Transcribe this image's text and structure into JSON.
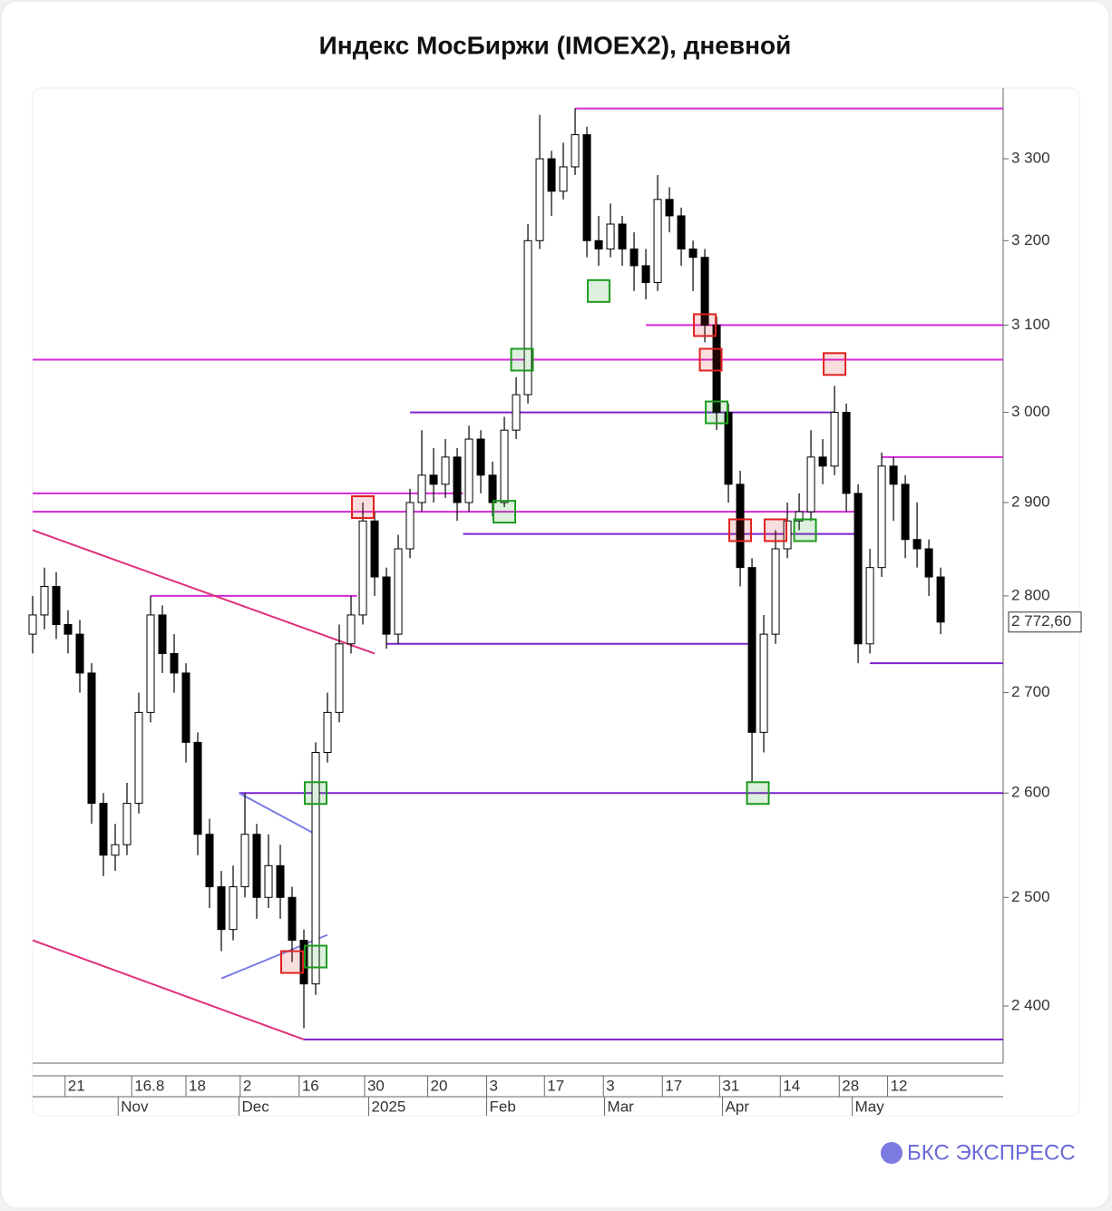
{
  "chart_data": {
    "type": "candlestick",
    "title": "Индекс МосБиржи (IMOEX2), дневной",
    "log_scale": true,
    "ylim": [
      2349,
      3389
    ],
    "yticks": [
      {
        "value": 2400,
        "label": "2 400"
      },
      {
        "value": 2500,
        "label": "2 500"
      },
      {
        "value": 2600,
        "label": "2 600"
      },
      {
        "value": 2700,
        "label": "2 700"
      },
      {
        "value": 2800,
        "label": "2 800"
      },
      {
        "value": 2900,
        "label": "2 900"
      },
      {
        "value": 3000,
        "label": "3 000"
      },
      {
        "value": 3100,
        "label": "3 100"
      },
      {
        "value": 3200,
        "label": "3 200"
      },
      {
        "value": 3300,
        "label": "3 300"
      }
    ],
    "xlim": [
      0,
      164.6
    ],
    "xticks": [
      {
        "value": 5.5,
        "label": "21"
      },
      16.8,
      {
        "value": 26,
        "label": "18"
      },
      {
        "value": 35.2,
        "label": "2"
      },
      {
        "value": 45.2,
        "label": "16"
      },
      {
        "value": 56.3,
        "label": "30"
      },
      {
        "value": 67,
        "label": "20"
      },
      {
        "value": 77,
        "label": "3"
      },
      {
        "value": 86.8,
        "label": "17"
      },
      {
        "value": 96.8,
        "label": "3"
      },
      {
        "value": 106.8,
        "label": "17"
      },
      {
        "value": 116.5,
        "label": "31"
      },
      {
        "value": 126.8,
        "label": "14"
      },
      {
        "value": 136.8,
        "label": "28"
      },
      {
        "value": 145,
        "label": "12"
      }
    ],
    "month_ticks": [
      {
        "value": 14.5,
        "label": "Nov"
      },
      {
        "value": 35,
        "label": "Dec"
      },
      {
        "value": 57,
        "label": "2025"
      },
      {
        "value": 77,
        "label": "Feb"
      },
      {
        "value": 97,
        "label": "Mar"
      },
      {
        "value": 117,
        "label": "Apr"
      },
      {
        "value": 139,
        "label": "May"
      }
    ],
    "up_color": "#ffffff",
    "down_color": "#000000",
    "x": [
      0,
      2,
      4,
      6,
      8,
      10,
      12,
      14,
      16,
      18,
      20,
      22,
      24,
      26,
      28,
      30,
      32,
      34,
      36,
      38,
      40,
      42,
      44,
      46,
      48,
      50,
      52,
      54,
      56,
      58,
      60,
      62,
      64,
      66,
      68,
      70,
      72,
      74,
      76,
      78,
      80,
      82,
      84,
      86,
      88,
      90,
      92,
      94,
      96,
      98,
      100,
      102,
      104,
      106,
      108,
      110,
      112,
      114,
      116,
      118,
      120,
      122,
      124,
      126,
      128,
      130,
      132,
      134,
      136,
      138,
      140,
      142,
      144,
      146,
      148,
      150,
      152,
      154
    ],
    "open": [
      2760,
      2780,
      2810,
      2770,
      2760,
      2720,
      2590,
      2540,
      2550,
      2590,
      2680,
      2780,
      2740,
      2720,
      2650,
      2560,
      2510,
      2470,
      2510,
      2560,
      2500,
      2530,
      2500,
      2460,
      2420,
      2640,
      2680,
      2750,
      2780,
      2880,
      2820,
      2760,
      2850,
      2900,
      2930,
      2920,
      2950,
      2900,
      2970,
      2930,
      2900,
      2980,
      3020,
      3200,
      3300,
      3260,
      3290,
      3330,
      3200,
      3190,
      3220,
      3190,
      3170,
      3150,
      3250,
      3230,
      3190,
      3180,
      3100,
      3000,
      2920,
      2830,
      2660,
      2760,
      2850,
      2880,
      2890,
      2950,
      2940,
      3000,
      2910,
      2750,
      2830,
      2940,
      2920,
      2860,
      2850,
      2820
    ],
    "high": [
      2800,
      2830,
      2825,
      2785,
      2775,
      2730,
      2600,
      2570,
      2610,
      2700,
      2800,
      2790,
      2760,
      2730,
      2660,
      2575,
      2525,
      2530,
      2600,
      2570,
      2560,
      2550,
      2510,
      2470,
      2650,
      2700,
      2770,
      2800,
      2900,
      2890,
      2830,
      2865,
      2915,
      2980,
      2960,
      2970,
      2960,
      2985,
      2980,
      2945,
      2995,
      3040,
      3220,
      3355,
      3310,
      3320,
      3363,
      3340,
      3230,
      3245,
      3230,
      3210,
      3190,
      3280,
      3265,
      3240,
      3200,
      3190,
      3110,
      3010,
      2935,
      2840,
      2780,
      2870,
      2900,
      2910,
      2980,
      2970,
      3030,
      3010,
      2920,
      2850,
      2955,
      2950,
      2930,
      2900,
      2860,
      2830
    ],
    "low": [
      2740,
      2765,
      2755,
      2740,
      2700,
      2570,
      2520,
      2525,
      2540,
      2580,
      2670,
      2720,
      2700,
      2630,
      2540,
      2490,
      2450,
      2460,
      2500,
      2480,
      2490,
      2480,
      2440,
      2380,
      2410,
      2630,
      2670,
      2740,
      2770,
      2800,
      2745,
      2750,
      2840,
      2890,
      2900,
      2905,
      2880,
      2890,
      2910,
      2885,
      2895,
      2970,
      3010,
      3190,
      3230,
      3250,
      3280,
      3180,
      3170,
      3180,
      3170,
      3140,
      3130,
      3140,
      3210,
      3170,
      3140,
      3080,
      2980,
      2900,
      2810,
      2610,
      2640,
      2750,
      2840,
      2870,
      2880,
      2920,
      2930,
      2890,
      2730,
      2740,
      2820,
      2880,
      2840,
      2830,
      2800,
      2760
    ],
    "close": [
      2780,
      2810,
      2770,
      2760,
      2720,
      2590,
      2540,
      2550,
      2590,
      2680,
      2780,
      2740,
      2720,
      2650,
      2560,
      2510,
      2470,
      2510,
      2560,
      2500,
      2530,
      2500,
      2460,
      2420,
      2640,
      2680,
      2750,
      2780,
      2880,
      2820,
      2760,
      2850,
      2900,
      2930,
      2920,
      2950,
      2900,
      2970,
      2930,
      2900,
      2980,
      3020,
      3200,
      3300,
      3260,
      3290,
      3330,
      3200,
      3190,
      3220,
      3190,
      3170,
      3150,
      3250,
      3230,
      3190,
      3180,
      3100,
      3000,
      2920,
      2830,
      2660,
      2760,
      2850,
      2880,
      2890,
      2950,
      2940,
      3000,
      2910,
      2750,
      2830,
      2940,
      2920,
      2860,
      2850,
      2820,
      2772.6
    ],
    "last_price": {
      "value": 2772.6,
      "label": "2 772,60"
    },
    "levels": [
      {
        "value": 3363,
        "from": 92,
        "to": 164.6,
        "color": "#d62ad6"
      },
      {
        "value": 3100,
        "from": 104,
        "to": 164.6,
        "color": "#d62ad6"
      },
      {
        "value": 3060,
        "from": 0,
        "to": 164.6,
        "color": "#d62ad6"
      },
      {
        "value": 3000,
        "from": 64,
        "to": 136,
        "color": "#7a22d0"
      },
      {
        "value": 2910,
        "from": 0,
        "to": 73,
        "color": "#d62ad6"
      },
      {
        "value": 2890,
        "from": 0,
        "to": 140,
        "color": "#d62ad6"
      },
      {
        "value": 2866,
        "from": 73,
        "to": 140,
        "color": "#7a22d0"
      },
      {
        "value": 2950,
        "from": 144,
        "to": 164.6,
        "color": "#d62ad6"
      },
      {
        "value": 2800,
        "from": 20,
        "to": 55,
        "color": "#d62ad6"
      },
      {
        "value": 2750,
        "from": 60,
        "to": 122,
        "color": "#7a22d0"
      },
      {
        "value": 2730,
        "from": 142,
        "to": 164.6,
        "color": "#7a22d0"
      },
      {
        "value": 2600,
        "from": 35,
        "to": 164.6,
        "color": "#7a22d0"
      },
      {
        "value": 2370,
        "from": 46,
        "to": 164.6,
        "color": "#7a22d0"
      }
    ],
    "trendlines": [
      {
        "x": [
          0,
          58
        ],
        "y": [
          2870,
          2740
        ],
        "color": "#e0307a"
      },
      {
        "x": [
          0,
          46
        ],
        "y": [
          2460,
          2370
        ],
        "color": "#e0307a"
      },
      {
        "x": [
          35,
          48
        ],
        "y": [
          2600,
          2560
        ],
        "color": "#7b7be8"
      },
      {
        "x": [
          32,
          50
        ],
        "y": [
          2425,
          2465
        ],
        "color": "#7b7be8"
      }
    ],
    "markers": [
      {
        "x": 56,
        "value": 2895,
        "color": "#e02020"
      },
      {
        "x": 48,
        "value": 2445,
        "color": "#1e9a1e"
      },
      {
        "x": 48,
        "value": 2600,
        "color": "#1e9a1e"
      },
      {
        "x": 44,
        "value": 2440,
        "color": "#e02020"
      },
      {
        "x": 83,
        "value": 3060,
        "color": "#1e9a1e"
      },
      {
        "x": 96,
        "value": 3140,
        "color": "#1e9a1e"
      },
      {
        "x": 114,
        "value": 3100,
        "color": "#e02020"
      },
      {
        "x": 115,
        "value": 3060,
        "color": "#e02020"
      },
      {
        "x": 116,
        "value": 3000,
        "color": "#1e9a1e"
      },
      {
        "x": 120,
        "value": 2870,
        "color": "#e02020"
      },
      {
        "x": 126,
        "value": 2870,
        "color": "#e02020"
      },
      {
        "x": 131,
        "value": 2870,
        "color": "#1e9a1e"
      },
      {
        "x": 136,
        "value": 3055,
        "color": "#e02020"
      },
      {
        "x": 80,
        "value": 2890,
        "color": "#1e9a1e"
      },
      {
        "x": 123,
        "value": 2600,
        "color": "#1e9a1e"
      }
    ]
  },
  "brand": "БКС ЭКСПРЕСС"
}
